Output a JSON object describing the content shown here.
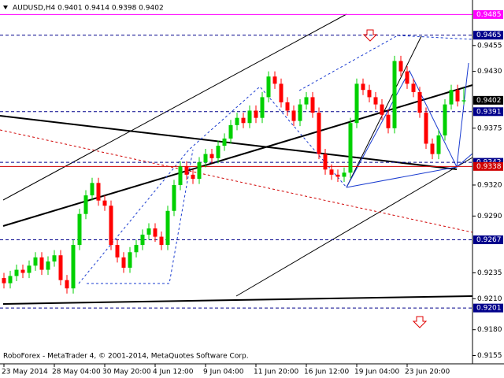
{
  "chart_data": {
    "type": "candlestick",
    "title": "AUDUSD,H4  0.9401 0.9414 0.9398 0.9402",
    "footer": "RoboForex - MetaTrader 4, © 2001-2014, MetaQuotes Software Corp.",
    "up_color": "#00d000",
    "down_color": "#ff0000",
    "ylim": [
      0.9147,
      0.9496
    ],
    "yticks": [
      0.9455,
      {
        "value": 0.943,
        "label": "0.9430"
      },
      0.9375,
      {
        "value": 0.932,
        "label": "0.9320"
      },
      {
        "value": 0.929,
        "label": "0.9290"
      },
      0.9235,
      {
        "value": 0.921,
        "label": "0.9210"
      },
      {
        "value": 0.918,
        "label": "0.9180"
      },
      0.9155
    ],
    "xticks": [
      {
        "value": 0,
        "label": "23 May 2014"
      },
      {
        "value": 8,
        "label": "28 May 04:00"
      },
      {
        "value": 16,
        "label": "30 May 20:00"
      },
      {
        "value": 24,
        "label": "4 Jun 12:00"
      },
      {
        "value": 32,
        "label": "9 Jun 04:00"
      },
      {
        "value": 40,
        "label": "11 Jun 20:00"
      },
      {
        "value": 48,
        "label": "16 Jun 12:00"
      },
      {
        "value": 56,
        "label": "19 Jun 04:00"
      },
      {
        "value": 64,
        "label": "23 Jun 20:00"
      }
    ],
    "levels": [
      {
        "value": 0.9485,
        "color": "#ff00ff",
        "style": "solid"
      },
      {
        "value": 0.9465,
        "color": "#00008b",
        "style": "dashed"
      },
      {
        "value": 0.9402,
        "color": "#000000",
        "style": "none"
      },
      {
        "value": 0.9391,
        "color": "#00008b",
        "style": "dashed"
      },
      {
        "value": 0.9342,
        "color": "#00008b",
        "style": "dashed"
      },
      {
        "value": 0.9338,
        "color": "#d00000",
        "style": "solid"
      },
      {
        "value": 0.9267,
        "color": "#00008b",
        "style": "dashed"
      },
      {
        "value": 0.9201,
        "color": "#00008b",
        "style": "dashed"
      }
    ],
    "open": [
      0.923,
      0.9225,
      0.9232,
      0.9238,
      0.9235,
      0.9242,
      0.925,
      0.9238,
      0.9246,
      0.9252,
      0.9228,
      0.922,
      0.9262,
      0.9292,
      0.931,
      0.9322,
      0.9305,
      0.93,
      0.9262,
      0.925,
      0.924,
      0.9255,
      0.9262,
      0.9272,
      0.9278,
      0.927,
      0.9262,
      0.9295,
      0.932,
      0.9338,
      0.933,
      0.9326,
      0.9342,
      0.935,
      0.9346,
      0.9358,
      0.9365,
      0.9378,
      0.9385,
      0.938,
      0.9392,
      0.9385,
      0.9405,
      0.9425,
      0.9418,
      0.94,
      0.9392,
      0.9382,
      0.9398,
      0.9405,
      0.939,
      0.935,
      0.9335,
      0.933,
      0.9328,
      0.9332,
      0.938,
      0.9418,
      0.9412,
      0.9405,
      0.9398,
      0.9388,
      0.9375,
      0.944,
      0.943,
      0.9418,
      0.941,
      0.939,
      0.936,
      0.935,
      0.9368,
      0.9398,
      0.9412,
      0.9401
    ],
    "high": [
      0.9235,
      0.9237,
      0.9243,
      0.9243,
      0.9247,
      0.9255,
      0.9255,
      0.9251,
      0.9257,
      0.9257,
      0.9233,
      0.9267,
      0.9297,
      0.9315,
      0.9327,
      0.9327,
      0.931,
      0.9305,
      0.9267,
      0.9255,
      0.926,
      0.9267,
      0.9277,
      0.9283,
      0.9283,
      0.9275,
      0.93,
      0.9325,
      0.9343,
      0.9343,
      0.9335,
      0.9347,
      0.9355,
      0.9355,
      0.9363,
      0.937,
      0.9383,
      0.939,
      0.939,
      0.9397,
      0.9397,
      0.941,
      0.943,
      0.943,
      0.9423,
      0.9405,
      0.9397,
      0.9403,
      0.941,
      0.941,
      0.9395,
      0.9355,
      0.934,
      0.9335,
      0.9337,
      0.9385,
      0.9423,
      0.9423,
      0.9417,
      0.941,
      0.9403,
      0.9393,
      0.9445,
      0.9445,
      0.9435,
      0.9423,
      0.9415,
      0.9395,
      0.9365,
      0.9373,
      0.9403,
      0.9417,
      0.9417,
      0.9414
    ],
    "low": [
      0.922,
      0.922,
      0.9227,
      0.923,
      0.923,
      0.9237,
      0.9233,
      0.9233,
      0.9241,
      0.9223,
      0.9215,
      0.9215,
      0.9257,
      0.9287,
      0.9305,
      0.93,
      0.9295,
      0.9257,
      0.9245,
      0.9235,
      0.9235,
      0.925,
      0.9257,
      0.9267,
      0.9265,
      0.9257,
      0.9257,
      0.929,
      0.9315,
      0.9325,
      0.9321,
      0.9321,
      0.9337,
      0.9341,
      0.9341,
      0.9353,
      0.936,
      0.9373,
      0.9375,
      0.9375,
      0.938,
      0.938,
      0.94,
      0.9413,
      0.9395,
      0.9387,
      0.9377,
      0.9377,
      0.9393,
      0.9385,
      0.9345,
      0.933,
      0.9325,
      0.9323,
      0.9323,
      0.9327,
      0.9375,
      0.9407,
      0.94,
      0.9393,
      0.9383,
      0.937,
      0.937,
      0.9425,
      0.9413,
      0.9405,
      0.9385,
      0.9355,
      0.9345,
      0.9345,
      0.9363,
      0.9393,
      0.9396,
      0.9398
    ],
    "close": [
      0.9225,
      0.9232,
      0.9238,
      0.9235,
      0.9242,
      0.925,
      0.9238,
      0.9246,
      0.9252,
      0.9228,
      0.922,
      0.9262,
      0.9292,
      0.931,
      0.9322,
      0.9305,
      0.93,
      0.9262,
      0.925,
      0.924,
      0.9255,
      0.9262,
      0.9272,
      0.9278,
      0.927,
      0.9262,
      0.9295,
      0.932,
      0.9338,
      0.933,
      0.9326,
      0.9342,
      0.935,
      0.9346,
      0.9358,
      0.9365,
      0.9378,
      0.9385,
      0.938,
      0.9392,
      0.9385,
      0.9405,
      0.9425,
      0.9418,
      0.94,
      0.9392,
      0.9382,
      0.9398,
      0.9405,
      0.939,
      0.935,
      0.9335,
      0.933,
      0.9328,
      0.9332,
      0.938,
      0.9418,
      0.9412,
      0.9405,
      0.9398,
      0.9388,
      0.9375,
      0.944,
      0.943,
      0.9418,
      0.941,
      0.939,
      0.936,
      0.935,
      0.9368,
      0.9398,
      0.9412,
      0.9401,
      0.9402
    ]
  }
}
